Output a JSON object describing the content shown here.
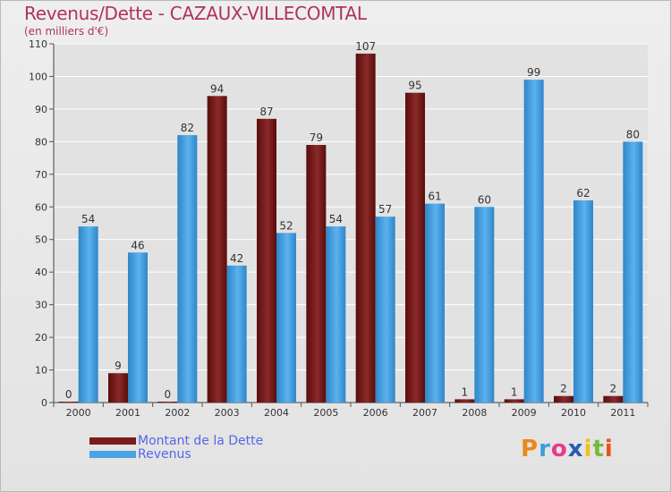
{
  "chart_data": {
    "type": "bar",
    "title": "Revenus/Dette - CAZAUX-VILLECOMTAL",
    "subtitle": "(en milliers d'€)",
    "xlabel": "",
    "ylabel": "",
    "ylim": [
      0,
      110
    ],
    "yticks": [
      0,
      10,
      20,
      30,
      40,
      50,
      60,
      70,
      80,
      90,
      100,
      110
    ],
    "grid": true,
    "categories": [
      "2000",
      "2001",
      "2002",
      "2003",
      "2004",
      "2005",
      "2006",
      "2007",
      "2008",
      "2009",
      "2010",
      "2011"
    ],
    "series": [
      {
        "name": "Montant de la Dette",
        "color": "#7a1c1c",
        "values": [
          0,
          9,
          0,
          94,
          87,
          79,
          107,
          95,
          1,
          1,
          2,
          2
        ]
      },
      {
        "name": "Revenus",
        "color": "#4aa3e3",
        "values": [
          54,
          46,
          82,
          42,
          52,
          54,
          57,
          61,
          60,
          99,
          62,
          80
        ]
      }
    ],
    "legend_position": "bottom-left"
  },
  "logo": {
    "text": "Proxiti",
    "letters": [
      "P",
      "r",
      "o",
      "x",
      "i",
      "t",
      "i"
    ],
    "colors": [
      "#e88a1a",
      "#3aa0d8",
      "#e83a8a",
      "#2a5ab0",
      "#f0c020",
      "#7ab83a",
      "#e8531a"
    ]
  }
}
